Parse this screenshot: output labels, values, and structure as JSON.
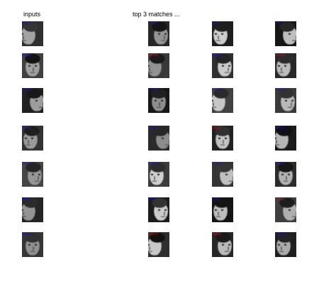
{
  "headers": {
    "inputs": "inputs",
    "matches": "top 3 matches ..."
  },
  "colors": {
    "match_label": "#1a1ab0",
    "mismatch_label": "#b01a1a",
    "background": "#ffffff"
  },
  "rows": [
    {
      "input": "1s2/15",
      "matches": [
        {
          "label": "1s2/20",
          "correct": true
        },
        {
          "label": "1s2/21",
          "correct": true
        },
        {
          "label": "1s2/18",
          "correct": true
        }
      ]
    },
    {
      "input": "1s3/15",
      "matches": [
        {
          "label": "1s7/06",
          "correct": false
        },
        {
          "label": "1s3/20",
          "correct": true
        },
        {
          "label": "1s7/03",
          "correct": false
        }
      ]
    },
    {
      "input": "1s2/25",
      "matches": [
        {
          "label": "1s2/25",
          "correct": true
        },
        {
          "label": "1s2/20",
          "correct": true
        },
        {
          "label": "1s2/26",
          "correct": true
        }
      ]
    },
    {
      "input": "1s4/11",
      "matches": [
        {
          "label": "1s4/11",
          "correct": true
        },
        {
          "label": "1s5/11",
          "correct": false
        },
        {
          "label": "1s4/11",
          "correct": true
        }
      ]
    },
    {
      "input": "1s4/12",
      "matches": [
        {
          "label": "1s4/10",
          "correct": true
        },
        {
          "label": "1s4/25",
          "correct": true
        },
        {
          "label": "1s4/05",
          "correct": true
        }
      ]
    },
    {
      "input": "1f/03",
      "matches": [
        {
          "label": "1f/02",
          "correct": true
        },
        {
          "label": "1f/02",
          "correct": true
        },
        {
          "label": "1s5/03",
          "correct": false
        }
      ]
    },
    {
      "input": "1s5/13",
      "matches": [
        {
          "label": "1s6/13",
          "correct": false
        },
        {
          "label": "1s6/11",
          "correct": false
        },
        {
          "label": "1s5/13",
          "correct": true
        }
      ]
    }
  ]
}
